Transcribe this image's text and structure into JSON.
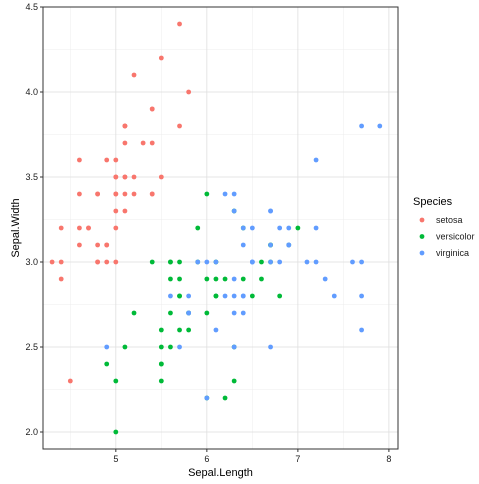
{
  "chart_data": {
    "type": "scatter",
    "title": "",
    "xlabel": "Sepal.Length",
    "ylabel": "Sepal.Width",
    "xlim": [
      4.2,
      8.1
    ],
    "ylim": [
      1.9,
      4.5
    ],
    "xticks": [
      5,
      6,
      7,
      8
    ],
    "yticks": [
      2.0,
      2.5,
      3.0,
      3.5,
      4.0,
      4.5
    ],
    "ytick_labels": [
      "2.0",
      "2.5",
      "3.0",
      "3.5",
      "4.0",
      "4.5"
    ],
    "grid": true,
    "legend": {
      "title": "Species",
      "position": "right"
    },
    "series": [
      {
        "name": "setosa",
        "color": "#F8766D",
        "points": [
          [
            5.1,
            3.5
          ],
          [
            4.9,
            3.0
          ],
          [
            4.7,
            3.2
          ],
          [
            4.6,
            3.1
          ],
          [
            5.0,
            3.6
          ],
          [
            5.4,
            3.9
          ],
          [
            4.6,
            3.4
          ],
          [
            5.0,
            3.4
          ],
          [
            4.4,
            2.9
          ],
          [
            4.9,
            3.1
          ],
          [
            5.4,
            3.7
          ],
          [
            4.8,
            3.4
          ],
          [
            4.8,
            3.0
          ],
          [
            4.3,
            3.0
          ],
          [
            5.8,
            4.0
          ],
          [
            5.7,
            4.4
          ],
          [
            5.4,
            3.9
          ],
          [
            5.1,
            3.5
          ],
          [
            5.7,
            3.8
          ],
          [
            5.1,
            3.8
          ],
          [
            5.4,
            3.4
          ],
          [
            5.1,
            3.7
          ],
          [
            4.6,
            3.6
          ],
          [
            5.1,
            3.3
          ],
          [
            4.8,
            3.4
          ],
          [
            5.0,
            3.0
          ],
          [
            5.0,
            3.4
          ],
          [
            5.2,
            3.5
          ],
          [
            5.2,
            3.4
          ],
          [
            4.7,
            3.2
          ],
          [
            4.8,
            3.1
          ],
          [
            5.4,
            3.4
          ],
          [
            5.2,
            4.1
          ],
          [
            5.5,
            4.2
          ],
          [
            4.9,
            3.1
          ],
          [
            5.0,
            3.2
          ],
          [
            5.5,
            3.5
          ],
          [
            4.9,
            3.6
          ],
          [
            4.4,
            3.0
          ],
          [
            5.1,
            3.4
          ],
          [
            5.0,
            3.5
          ],
          [
            4.5,
            2.3
          ],
          [
            4.4,
            3.2
          ],
          [
            5.0,
            3.5
          ],
          [
            5.1,
            3.8
          ],
          [
            4.8,
            3.0
          ],
          [
            5.1,
            3.8
          ],
          [
            4.6,
            3.2
          ],
          [
            5.3,
            3.7
          ],
          [
            5.0,
            3.3
          ]
        ]
      },
      {
        "name": "versicolor",
        "color": "#00BA38",
        "points": [
          [
            7.0,
            3.2
          ],
          [
            6.4,
            3.2
          ],
          [
            6.9,
            3.1
          ],
          [
            5.5,
            2.3
          ],
          [
            6.5,
            2.8
          ],
          [
            5.7,
            2.8
          ],
          [
            6.3,
            3.3
          ],
          [
            4.9,
            2.4
          ],
          [
            6.6,
            2.9
          ],
          [
            5.2,
            2.7
          ],
          [
            5.0,
            2.0
          ],
          [
            5.9,
            3.0
          ],
          [
            6.0,
            2.2
          ],
          [
            6.1,
            2.9
          ],
          [
            5.6,
            2.9
          ],
          [
            6.7,
            3.1
          ],
          [
            5.6,
            3.0
          ],
          [
            5.8,
            2.7
          ],
          [
            6.2,
            2.2
          ],
          [
            5.6,
            2.5
          ],
          [
            5.9,
            3.2
          ],
          [
            6.1,
            2.8
          ],
          [
            6.3,
            2.5
          ],
          [
            6.1,
            2.8
          ],
          [
            6.4,
            2.9
          ],
          [
            6.6,
            3.0
          ],
          [
            6.8,
            2.8
          ],
          [
            6.7,
            3.0
          ],
          [
            6.0,
            2.9
          ],
          [
            5.7,
            2.6
          ],
          [
            5.5,
            2.4
          ],
          [
            5.5,
            2.4
          ],
          [
            5.8,
            2.7
          ],
          [
            6.0,
            2.7
          ],
          [
            5.4,
            3.0
          ],
          [
            6.0,
            3.4
          ],
          [
            6.7,
            3.1
          ],
          [
            6.3,
            2.3
          ],
          [
            5.6,
            3.0
          ],
          [
            5.5,
            2.5
          ],
          [
            5.5,
            2.6
          ],
          [
            6.1,
            3.0
          ],
          [
            5.8,
            2.6
          ],
          [
            5.0,
            2.3
          ],
          [
            5.6,
            2.7
          ],
          [
            5.7,
            3.0
          ],
          [
            5.7,
            2.9
          ],
          [
            6.2,
            2.9
          ],
          [
            5.1,
            2.5
          ],
          [
            5.7,
            2.8
          ]
        ]
      },
      {
        "name": "virginica",
        "color": "#619CFF",
        "points": [
          [
            6.3,
            3.3
          ],
          [
            5.8,
            2.7
          ],
          [
            7.1,
            3.0
          ],
          [
            6.3,
            2.9
          ],
          [
            6.5,
            3.0
          ],
          [
            7.6,
            3.0
          ],
          [
            4.9,
            2.5
          ],
          [
            7.3,
            2.9
          ],
          [
            6.7,
            2.5
          ],
          [
            7.2,
            3.6
          ],
          [
            6.5,
            3.2
          ],
          [
            6.4,
            2.7
          ],
          [
            6.8,
            3.0
          ],
          [
            5.7,
            2.5
          ],
          [
            5.8,
            2.8
          ],
          [
            6.4,
            3.2
          ],
          [
            6.5,
            3.0
          ],
          [
            7.7,
            3.8
          ],
          [
            7.7,
            2.6
          ],
          [
            6.0,
            2.2
          ],
          [
            6.9,
            3.2
          ],
          [
            5.6,
            2.8
          ],
          [
            7.7,
            2.8
          ],
          [
            6.3,
            2.7
          ],
          [
            6.7,
            3.3
          ],
          [
            7.2,
            3.2
          ],
          [
            6.2,
            2.8
          ],
          [
            6.1,
            3.0
          ],
          [
            6.4,
            2.8
          ],
          [
            7.2,
            3.0
          ],
          [
            7.4,
            2.8
          ],
          [
            7.9,
            3.8
          ],
          [
            6.4,
            2.8
          ],
          [
            6.3,
            2.8
          ],
          [
            6.1,
            2.6
          ],
          [
            7.7,
            3.0
          ],
          [
            6.3,
            3.4
          ],
          [
            6.4,
            3.1
          ],
          [
            6.0,
            3.0
          ],
          [
            6.9,
            3.1
          ],
          [
            6.7,
            3.1
          ],
          [
            6.9,
            3.1
          ],
          [
            5.8,
            2.7
          ],
          [
            6.8,
            3.2
          ],
          [
            6.7,
            3.3
          ],
          [
            6.7,
            3.0
          ],
          [
            6.3,
            2.5
          ],
          [
            6.5,
            3.0
          ],
          [
            6.2,
            3.4
          ],
          [
            5.9,
            3.0
          ]
        ]
      }
    ]
  }
}
